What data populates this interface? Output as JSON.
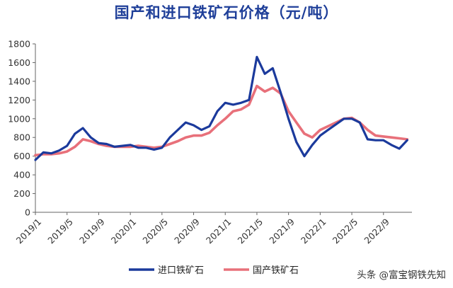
{
  "chart_data": {
    "type": "line",
    "title": "国产和进口铁矿石价格（元/吨）",
    "xlabel": "",
    "ylabel": "",
    "ylim": [
      0,
      1800
    ],
    "yticks": [
      0,
      200,
      400,
      600,
      800,
      1000,
      1200,
      1400,
      1600,
      1800
    ],
    "xticks": [
      "2019/1",
      "2019/5",
      "2019/9",
      "2020/1",
      "2020/5",
      "2020/9",
      "2021/1",
      "2021/5",
      "2021/9",
      "2022/1",
      "2022/5",
      "2022/9"
    ],
    "grid": false,
    "legend_position": "bottom",
    "series": [
      {
        "name": "进口铁矿石",
        "color": "#1b3a9c",
        "points": [
          [
            "2019/1",
            560
          ],
          [
            "2019/2",
            640
          ],
          [
            "2019/3",
            630
          ],
          [
            "2019/4",
            660
          ],
          [
            "2019/5",
            710
          ],
          [
            "2019/6",
            840
          ],
          [
            "2019/7",
            900
          ],
          [
            "2019/8",
            800
          ],
          [
            "2019/9",
            740
          ],
          [
            "2019/10",
            730
          ],
          [
            "2019/11",
            700
          ],
          [
            "2019/12",
            710
          ],
          [
            "2020/1",
            720
          ],
          [
            "2020/2",
            690
          ],
          [
            "2020/3",
            690
          ],
          [
            "2020/4",
            670
          ],
          [
            "2020/5",
            690
          ],
          [
            "2020/6",
            800
          ],
          [
            "2020/7",
            880
          ],
          [
            "2020/8",
            960
          ],
          [
            "2020/9",
            930
          ],
          [
            "2020/10",
            880
          ],
          [
            "2020/11",
            920
          ],
          [
            "2020/12",
            1080
          ],
          [
            "2021/1",
            1170
          ],
          [
            "2021/2",
            1150
          ],
          [
            "2021/3",
            1170
          ],
          [
            "2021/4",
            1200
          ],
          [
            "2021/5",
            1660
          ],
          [
            "2021/6",
            1480
          ],
          [
            "2021/7",
            1540
          ],
          [
            "2021/8",
            1280
          ],
          [
            "2021/9",
            1000
          ],
          [
            "2021/10",
            750
          ],
          [
            "2021/11",
            600
          ],
          [
            "2021/12",
            720
          ],
          [
            "2022/1",
            820
          ],
          [
            "2022/2",
            880
          ],
          [
            "2022/3",
            940
          ],
          [
            "2022/4",
            1000
          ],
          [
            "2022/5",
            1000
          ],
          [
            "2022/6",
            960
          ],
          [
            "2022/7",
            780
          ],
          [
            "2022/8",
            770
          ],
          [
            "2022/9",
            770
          ],
          [
            "2022/10",
            720
          ],
          [
            "2022/11",
            680
          ],
          [
            "2022/12",
            770
          ]
        ]
      },
      {
        "name": "国产铁矿石",
        "color": "#e8707a",
        "points": [
          [
            "2019/1",
            610
          ],
          [
            "2019/2",
            620
          ],
          [
            "2019/3",
            620
          ],
          [
            "2019/4",
            630
          ],
          [
            "2019/5",
            650
          ],
          [
            "2019/6",
            700
          ],
          [
            "2019/7",
            780
          ],
          [
            "2019/8",
            760
          ],
          [
            "2019/9",
            730
          ],
          [
            "2019/10",
            710
          ],
          [
            "2019/11",
            700
          ],
          [
            "2019/12",
            700
          ],
          [
            "2020/1",
            700
          ],
          [
            "2020/2",
            710
          ],
          [
            "2020/3",
            700
          ],
          [
            "2020/4",
            690
          ],
          [
            "2020/5",
            700
          ],
          [
            "2020/6",
            730
          ],
          [
            "2020/7",
            760
          ],
          [
            "2020/8",
            800
          ],
          [
            "2020/9",
            820
          ],
          [
            "2020/10",
            820
          ],
          [
            "2020/11",
            850
          ],
          [
            "2020/12",
            930
          ],
          [
            "2021/1",
            1000
          ],
          [
            "2021/2",
            1080
          ],
          [
            "2021/3",
            1100
          ],
          [
            "2021/4",
            1150
          ],
          [
            "2021/5",
            1350
          ],
          [
            "2021/6",
            1290
          ],
          [
            "2021/7",
            1330
          ],
          [
            "2021/8",
            1270
          ],
          [
            "2021/9",
            1080
          ],
          [
            "2021/10",
            960
          ],
          [
            "2021/11",
            840
          ],
          [
            "2021/12",
            800
          ],
          [
            "2022/1",
            880
          ],
          [
            "2022/2",
            920
          ],
          [
            "2022/3",
            960
          ],
          [
            "2022/4",
            1000
          ],
          [
            "2022/5",
            1010
          ],
          [
            "2022/6",
            960
          ],
          [
            "2022/7",
            880
          ],
          [
            "2022/8",
            820
          ],
          [
            "2022/9",
            810
          ],
          [
            "2022/10",
            800
          ],
          [
            "2022/11",
            790
          ],
          [
            "2022/12",
            780
          ]
        ]
      }
    ]
  },
  "watermark": "头条 @富宝钢铁先知"
}
